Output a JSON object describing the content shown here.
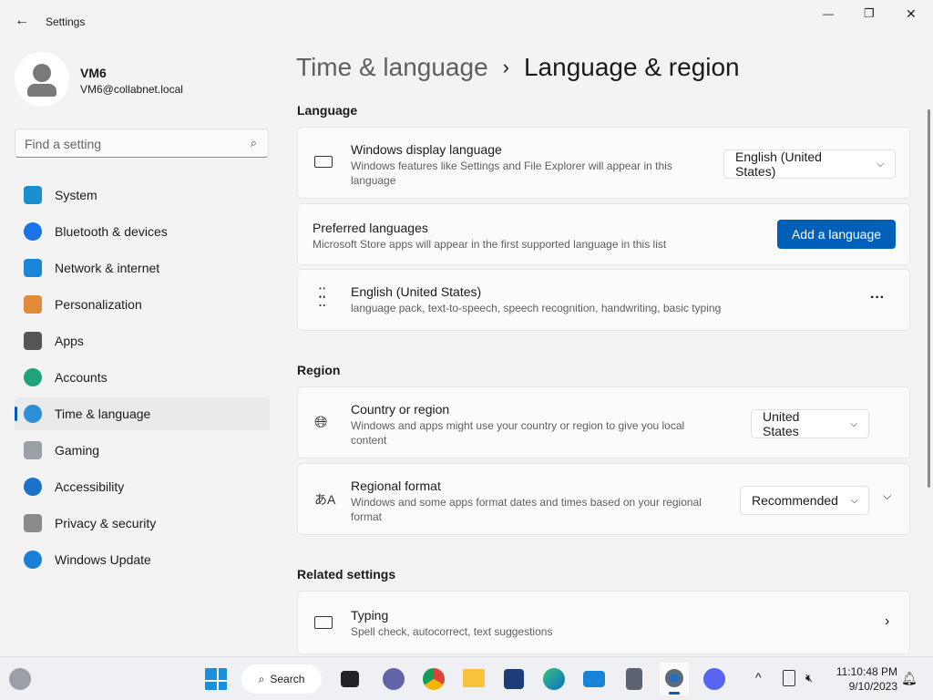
{
  "window": {
    "title": "Settings",
    "minimize": "—",
    "maximize": "❐",
    "close": "✕"
  },
  "user": {
    "name": "VM6",
    "email": "VM6@collabnet.local"
  },
  "search": {
    "placeholder": "Find a setting"
  },
  "sidebar": {
    "items": [
      {
        "label": "System",
        "color": "#1a8fd0"
      },
      {
        "label": "Bluetooth & devices",
        "color": "#1a73e8"
      },
      {
        "label": "Network & internet",
        "color": "#1b86d8"
      },
      {
        "label": "Personalization",
        "color": "#e38a3a"
      },
      {
        "label": "Apps",
        "color": "#555555"
      },
      {
        "label": "Accounts",
        "color": "#1fa37a"
      },
      {
        "label": "Time & language",
        "color": "#2d8fd8"
      },
      {
        "label": "Gaming",
        "color": "#9aa0a6"
      },
      {
        "label": "Accessibility",
        "color": "#1a73c8"
      },
      {
        "label": "Privacy & security",
        "color": "#8a8a8a"
      },
      {
        "label": "Windows Update",
        "color": "#1a7fd6"
      }
    ],
    "selected": "Time & language"
  },
  "breadcrumb": {
    "parent": "Time & language",
    "sep": "›",
    "current": "Language & region"
  },
  "language": {
    "heading": "Language",
    "display": {
      "title": "Windows display language",
      "desc": "Windows features like Settings and File Explorer will appear in this language",
      "value": "English (United States)"
    },
    "preferred": {
      "title": "Preferred languages",
      "desc": "Microsoft Store apps will appear in the first supported language in this list",
      "button": "Add a language"
    },
    "entry": {
      "title": "English (United States)",
      "desc": "language pack, text-to-speech, speech recognition, handwriting, basic typing",
      "more": "···"
    }
  },
  "region": {
    "heading": "Region",
    "country": {
      "title": "Country or region",
      "desc": "Windows and apps might use your country or region to give you local content",
      "value": "United States"
    },
    "format": {
      "title": "Regional format",
      "desc": "Windows and some apps format dates and times based on your regional format",
      "value": "Recommended"
    }
  },
  "related": {
    "heading": "Related settings",
    "typing": {
      "title": "Typing",
      "desc": "Spell check, autocorrect, text suggestions"
    }
  },
  "taskbar": {
    "search": "Search",
    "time": "11:10:48 PM",
    "date": "9/10/2023"
  },
  "accent": "#005fb8"
}
